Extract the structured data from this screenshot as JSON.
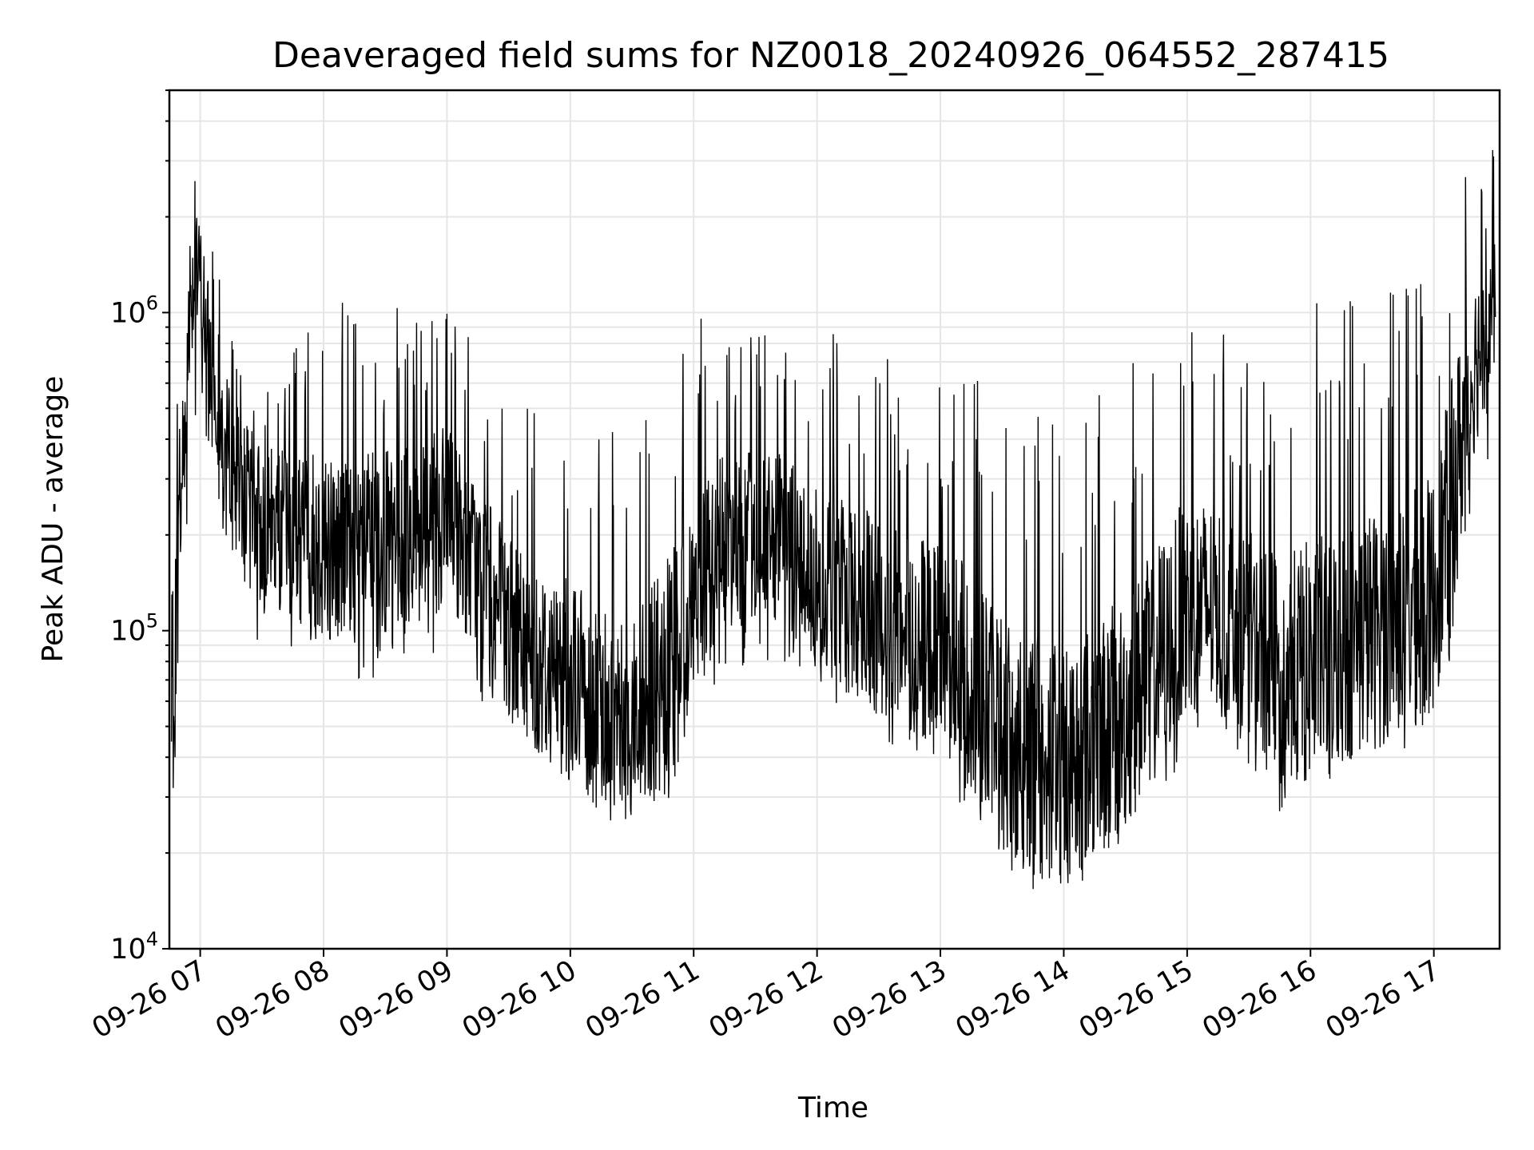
{
  "chart_data": {
    "type": "line",
    "title": "Deaveraged field sums for NZ0018_20240926_064552_287415",
    "xlabel": "Time",
    "ylabel": "Peak ADU - average",
    "yscale": "log",
    "ylim": [
      10000,
      5000000
    ],
    "xlim": [
      "2024-09-26 06:45",
      "2024-09-26 17:32"
    ],
    "x_ticks": [
      "09-26 07",
      "09-26 08",
      "09-26 09",
      "09-26 10",
      "09-26 11",
      "09-26 12",
      "09-26 13",
      "09-26 14",
      "09-26 15",
      "09-26 16",
      "09-26 17"
    ],
    "y_ticks": [
      {
        "value": 10000,
        "base": "10",
        "exp": "4"
      },
      {
        "value": 100000,
        "base": "10",
        "exp": "5"
      },
      {
        "value": 1000000,
        "base": "10",
        "exp": "6"
      }
    ],
    "grid": true,
    "line_color": "#000000",
    "series": [
      {
        "x": [
          "2024-09-26 06:46",
          "2024-09-26 06:50",
          "2024-09-26 06:55",
          "2024-09-26 07:00",
          "2024-09-26 07:05",
          "2024-09-26 07:10",
          "2024-09-26 07:20",
          "2024-09-26 07:30",
          "2024-09-26 07:45",
          "2024-09-26 08:00",
          "2024-09-26 08:15",
          "2024-09-26 08:30",
          "2024-09-26 08:45",
          "2024-09-26 09:00",
          "2024-09-26 09:15",
          "2024-09-26 09:30",
          "2024-09-26 09:45",
          "2024-09-26 10:00",
          "2024-09-26 10:15",
          "2024-09-26 10:30",
          "2024-09-26 10:45",
          "2024-09-26 11:00",
          "2024-09-26 11:15",
          "2024-09-26 11:30",
          "2024-09-26 11:45",
          "2024-09-26 12:00",
          "2024-09-26 12:15",
          "2024-09-26 12:30",
          "2024-09-26 12:45",
          "2024-09-26 13:00",
          "2024-09-26 13:15",
          "2024-09-26 13:30",
          "2024-09-26 13:45",
          "2024-09-26 14:00",
          "2024-09-26 14:15",
          "2024-09-26 14:30",
          "2024-09-26 14:45",
          "2024-09-26 15:00",
          "2024-09-26 15:15",
          "2024-09-26 15:30",
          "2024-09-26 15:45",
          "2024-09-26 16:00",
          "2024-09-26 16:15",
          "2024-09-26 16:30",
          "2024-09-26 16:45",
          "2024-09-26 17:00",
          "2024-09-26 17:10",
          "2024-09-26 17:20",
          "2024-09-26 17:30"
        ],
        "y": [
          60000,
          200000,
          1200000,
          1300000,
          700000,
          450000,
          280000,
          220000,
          200000,
          190000,
          180000,
          190000,
          200000,
          230000,
          160000,
          100000,
          80000,
          70000,
          60000,
          55000,
          70000,
          120000,
          190000,
          200000,
          190000,
          150000,
          130000,
          110000,
          100000,
          90000,
          70000,
          50000,
          40000,
          38000,
          45000,
          55000,
          80000,
          120000,
          120000,
          100000,
          70000,
          80000,
          90000,
          100000,
          110000,
          130000,
          300000,
          700000,
          1100000
        ],
        "min": [
          30000,
          40000,
          400000,
          550000,
          300000,
          200000,
          120000,
          80000,
          75000,
          75000,
          70000,
          70000,
          75000,
          90000,
          60000,
          40000,
          32000,
          28000,
          25000,
          22000,
          26000,
          50000,
          70000,
          75000,
          80000,
          65000,
          50000,
          45000,
          40000,
          35000,
          25000,
          18000,
          15000,
          14000,
          16000,
          22000,
          30000,
          40000,
          45000,
          38000,
          27000,
          30000,
          35000,
          38000,
          42000,
          48000,
          90000,
          250000,
          400000
        ],
        "max": [
          550000,
          600000,
          3500000,
          3200000,
          1900000,
          1200000,
          1000000,
          750000,
          900000,
          1200000,
          1100000,
          1000000,
          1100000,
          1200000,
          750000,
          600000,
          500000,
          550000,
          500000,
          450000,
          650000,
          950000,
          1000000,
          900000,
          1000000,
          900000,
          850000,
          800000,
          700000,
          700000,
          650000,
          600000,
          550000,
          500000,
          550000,
          700000,
          900000,
          1000000,
          900000,
          700000,
          900000,
          1100000,
          1200000,
          1300000,
          1400000,
          1600000,
          2600000,
          3200000,
          3400000
        ]
      }
    ]
  }
}
